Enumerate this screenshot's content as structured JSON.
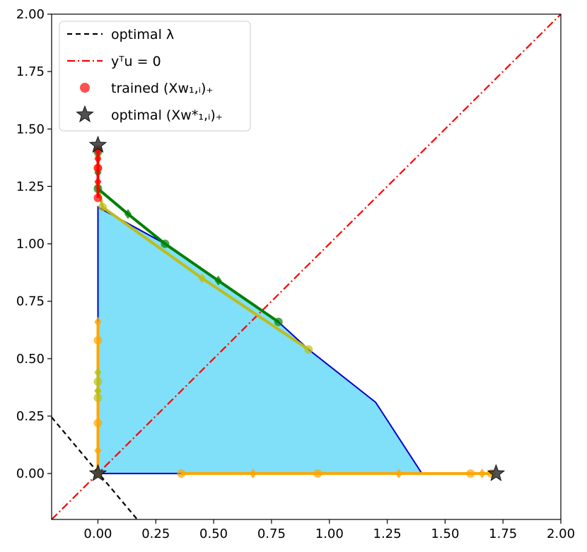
{
  "chart_data": {
    "type": "scatter",
    "title": "",
    "xlabel": "",
    "ylabel": "",
    "xlim": [
      -0.2,
      2.0
    ],
    "ylim": [
      -0.2,
      2.0
    ],
    "grid": false,
    "legend_position": "top-left",
    "x_ticks": [
      "0.00",
      "0.25",
      "0.50",
      "0.75",
      "1.00",
      "1.25",
      "1.50",
      "1.75",
      "2.00"
    ],
    "y_ticks": [
      "0.00",
      "0.25",
      "0.50",
      "0.75",
      "1.00",
      "1.25",
      "1.50",
      "1.75",
      "2.00"
    ],
    "legend": [
      {
        "id": "optimal-lambda",
        "label": "optimal λ",
        "style": "dashed",
        "color": "#000000"
      },
      {
        "id": "ytu-zero",
        "label": "yᵀu = 0",
        "style": "dashdot",
        "color": "#ff0000"
      },
      {
        "id": "trained",
        "label": "trained (Xw₁,ᵢ)₊",
        "style": "circle",
        "color": "#ff3333"
      },
      {
        "id": "optimal-star",
        "label": "optimal (Xw*₁,ᵢ)₊",
        "style": "star",
        "color": "#333333"
      }
    ],
    "feasible_region": {
      "fill": "#80dff9",
      "edge": "#0000cc",
      "boundary": [
        [
          0,
          0
        ],
        [
          1.4,
          0
        ],
        [
          1.2,
          0.31
        ],
        [
          0.91,
          0.54
        ],
        [
          0.78,
          0.66
        ],
        [
          0.52,
          0.84
        ],
        [
          0.29,
          1.0
        ],
        [
          0.0,
          1.16
        ],
        [
          0,
          0
        ]
      ]
    },
    "reference_lines": [
      {
        "name": "optimal λ",
        "points": [
          [
            -0.2,
            0.245
          ],
          [
            0.17,
            -0.2
          ]
        ],
        "color": "#000000"
      },
      {
        "name": "yᵀu = 0",
        "points": [
          [
            -0.2,
            -0.2
          ],
          [
            2.0,
            2.0
          ]
        ],
        "color": "#ff0000"
      }
    ],
    "optimal_points": [
      [
        0.0,
        1.43
      ],
      [
        1.72,
        0.0
      ],
      [
        0.0,
        0.0
      ]
    ],
    "series": [
      {
        "color": "#ffa500",
        "points": [
          [
            0.36,
            0.0
          ],
          [
            0.67,
            0.0
          ],
          [
            0.95,
            0.0
          ],
          [
            1.3,
            0.0
          ],
          [
            1.61,
            0.0
          ],
          [
            1.66,
            0.0
          ],
          [
            1.7,
            0.0
          ]
        ]
      },
      {
        "color": "#ffa500",
        "points": [
          [
            0.0,
            0.0
          ],
          [
            0.0,
            0.1
          ],
          [
            0.0,
            0.22
          ],
          [
            0.0,
            0.36
          ],
          [
            0.0,
            0.58
          ],
          [
            0.0,
            0.66
          ]
        ]
      },
      {
        "color": "#bdbd1a",
        "points": [
          [
            0.91,
            0.54
          ],
          [
            0.45,
            0.85
          ],
          [
            0.02,
            1.16
          ],
          [
            0.0,
            1.25
          ],
          [
            0.0,
            1.33
          ],
          [
            0.0,
            1.38
          ]
        ]
      },
      {
        "color": "#008000",
        "points": [
          [
            0.78,
            0.66
          ],
          [
            0.52,
            0.84
          ],
          [
            0.29,
            1.0
          ],
          [
            0.13,
            1.13
          ],
          [
            0.0,
            1.24
          ],
          [
            0.0,
            1.31
          ],
          [
            0.0,
            1.4
          ]
        ]
      },
      {
        "color": "#bdbd1a",
        "points": [
          [
            0.0,
            0.33
          ],
          [
            0.0,
            0.36
          ],
          [
            0.0,
            0.4
          ],
          [
            0.0,
            0.44
          ]
        ]
      },
      {
        "color": "#ff0000",
        "points": [
          [
            0.0,
            1.2
          ],
          [
            0.0,
            1.27
          ],
          [
            0.0,
            1.33
          ],
          [
            0.0,
            1.37
          ],
          [
            0.0,
            1.41
          ]
        ]
      }
    ]
  }
}
